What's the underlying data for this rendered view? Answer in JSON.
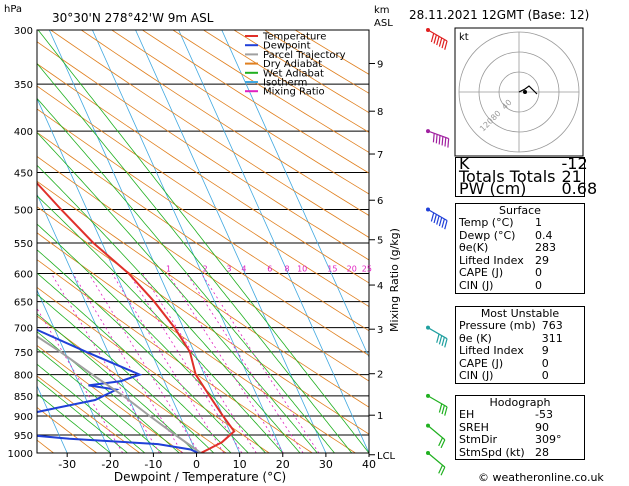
{
  "header": {
    "hpa_label": "hPa",
    "location": "30°30'N  278°42'W  9m  ASL",
    "km_label": "km",
    "asl_label": "ASL",
    "datetime": "28.11.2021  12GMT  (Base: 12)"
  },
  "legend": [
    {
      "label": "Temperature",
      "color": "#e0302a"
    },
    {
      "label": "Dewpoint",
      "color": "#2040d8"
    },
    {
      "label": "Parcel Trajectory",
      "color": "#a0a0a0"
    },
    {
      "label": "Dry Adiabat",
      "color": "#e08020"
    },
    {
      "label": "Wet Adiabat",
      "color": "#20b020"
    },
    {
      "label": "Isotherm",
      "color": "#40a8e0"
    },
    {
      "label": "Mixing Ratio",
      "color": "#e020c0"
    }
  ],
  "chart_data": {
    "type": "line",
    "xlabel": "Dewpoint / Temperature (°C)",
    "right_axis_label": "Mixing Ratio (g/kg)",
    "x_ticks": [
      -30,
      -20,
      -10,
      0,
      10,
      20,
      30,
      40
    ],
    "x_tick_labels": [
      "-30",
      "-20",
      "-10",
      "0",
      "10",
      "20",
      "30",
      "40"
    ],
    "pressure_levels": [
      300,
      350,
      400,
      450,
      500,
      550,
      600,
      650,
      700,
      750,
      800,
      850,
      900,
      950,
      1000
    ],
    "pressure_labels": [
      "300",
      "350",
      "400",
      "450",
      "500",
      "550",
      "600",
      "650",
      "700",
      "750",
      "800",
      "850",
      "900",
      "950",
      "1000"
    ],
    "km_ticks": [
      {
        "label": "9",
        "p": 330
      },
      {
        "label": "8",
        "p": 378
      },
      {
        "label": "7",
        "p": 427
      },
      {
        "label": "6",
        "p": 487
      },
      {
        "label": "5",
        "p": 545
      },
      {
        "label": "4",
        "p": 620
      },
      {
        "label": "3",
        "p": 703
      },
      {
        "label": "2",
        "p": 798
      },
      {
        "label": "1",
        "p": 898
      },
      {
        "label": "LCL",
        "p": 1005
      }
    ],
    "mixing_ratio_labels": [
      {
        "label": "1",
        "x": -6.5
      },
      {
        "label": "2",
        "x": 2.0
      },
      {
        "label": "3",
        "x": 7.5
      },
      {
        "label": "4",
        "x": 11.0
      },
      {
        "label": "6",
        "x": 17.0
      },
      {
        "label": "8",
        "x": 21.0
      },
      {
        "label": "10",
        "x": 24.5
      },
      {
        "label": "15",
        "x": 31.5
      },
      {
        "label": "20",
        "x": 36.0
      },
      {
        "label": "25",
        "x": 39.5
      }
    ],
    "series": [
      {
        "name": "Temperature",
        "color": "#e0302a",
        "points": [
          [
            300,
            -34
          ],
          [
            330,
            -27
          ],
          [
            360,
            -21
          ],
          [
            400,
            -16
          ],
          [
            450,
            -10
          ],
          [
            500,
            -6
          ],
          [
            550,
            -2
          ],
          [
            600,
            3
          ],
          [
            650,
            6
          ],
          [
            700,
            8
          ],
          [
            750,
            9
          ],
          [
            800,
            8
          ],
          [
            850,
            9
          ],
          [
            900,
            10
          ],
          [
            940,
            11
          ],
          [
            970,
            7
          ],
          [
            990,
            3
          ],
          [
            1000,
            1
          ]
        ]
      },
      {
        "name": "Dewpoint",
        "color": "#2040d8",
        "points": [
          [
            300,
            -46
          ],
          [
            320,
            -41
          ],
          [
            345,
            -50
          ],
          [
            365,
            -60
          ],
          [
            380,
            -76
          ],
          [
            400,
            -76
          ],
          [
            450,
            -74
          ],
          [
            470,
            -73
          ],
          [
            490,
            -65
          ],
          [
            530,
            -52
          ],
          [
            548,
            -55
          ],
          [
            580,
            -65
          ],
          [
            590,
            -58
          ],
          [
            610,
            -51
          ],
          [
            640,
            -43
          ],
          [
            660,
            -30
          ],
          [
            700,
            -25
          ],
          [
            750,
            -15
          ],
          [
            800,
            -5
          ],
          [
            815,
            -10
          ],
          [
            825,
            -18
          ],
          [
            835,
            -12
          ],
          [
            860,
            -18
          ],
          [
            880,
            -28
          ],
          [
            910,
            -42
          ],
          [
            930,
            -58
          ],
          [
            945,
            -42
          ],
          [
            960,
            -28
          ],
          [
            975,
            -8
          ],
          [
            990,
            -1
          ],
          [
            1000,
            0.4
          ]
        ]
      },
      {
        "name": "Parcel Trajectory",
        "color": "#a0a0a0",
        "points": [
          [
            1000,
            1
          ],
          [
            950,
            -3
          ],
          [
            900,
            -7
          ],
          [
            850,
            -11
          ],
          [
            800,
            -16
          ],
          [
            750,
            -21
          ],
          [
            700,
            -27
          ],
          [
            650,
            -33
          ],
          [
            600,
            -39
          ],
          [
            550,
            -46
          ],
          [
            500,
            -52
          ],
          [
            450,
            -58
          ],
          [
            400,
            -64
          ],
          [
            350,
            -70
          ],
          [
            300,
            -75
          ]
        ]
      }
    ],
    "wind_barbs": [
      {
        "p": 300,
        "dir": 300,
        "speed": 90
      },
      {
        "p": 400,
        "dir": 290,
        "speed": 70
      },
      {
        "p": 500,
        "dir": 300,
        "speed": 55
      },
      {
        "p": 700,
        "dir": 300,
        "speed": 35
      },
      {
        "p": 850,
        "dir": 300,
        "speed": 25
      },
      {
        "p": 925,
        "dir": 310,
        "speed": 20
      },
      {
        "p": 1000,
        "dir": 310,
        "speed": 15
      }
    ]
  },
  "hodograph": {
    "label": "kt",
    "ring_labels": [
      "40",
      "80",
      "120"
    ],
    "points": [
      [
        0,
        0
      ],
      [
        6,
        -3
      ],
      [
        10,
        -6
      ],
      [
        14,
        -2
      ],
      [
        18,
        2
      ]
    ]
  },
  "indices": {
    "rows": [
      {
        "label": "K",
        "value": "-12"
      },
      {
        "label": "Totals Totals",
        "value": "21"
      },
      {
        "label": "PW (cm)",
        "value": "0.68"
      }
    ]
  },
  "surface": {
    "title": "Surface",
    "rows": [
      {
        "label": "Temp (°C)",
        "value": "1"
      },
      {
        "label": "Dewp (°C)",
        "value": "0.4"
      },
      {
        "label": "θe(K)",
        "value": "283"
      },
      {
        "label": "Lifted Index",
        "value": "29"
      },
      {
        "label": "CAPE (J)",
        "value": "0"
      },
      {
        "label": "CIN (J)",
        "value": "0"
      }
    ]
  },
  "most_unstable": {
    "title": "Most Unstable",
    "rows": [
      {
        "label": "Pressure (mb)",
        "value": "763"
      },
      {
        "label": "θe (K)",
        "value": "311"
      },
      {
        "label": "Lifted Index",
        "value": "9"
      },
      {
        "label": "CAPE (J)",
        "value": "0"
      },
      {
        "label": "CIN (J)",
        "value": "0"
      }
    ]
  },
  "hodograph_stats": {
    "title": "Hodograph",
    "rows": [
      {
        "label": "EH",
        "value": "-53"
      },
      {
        "label": "SREH",
        "value": "90"
      },
      {
        "label": "StmDir",
        "value": "309°"
      },
      {
        "label": "StmSpd (kt)",
        "value": "28"
      }
    ]
  },
  "footer": {
    "copyright": "© weatheronline.co.uk"
  }
}
